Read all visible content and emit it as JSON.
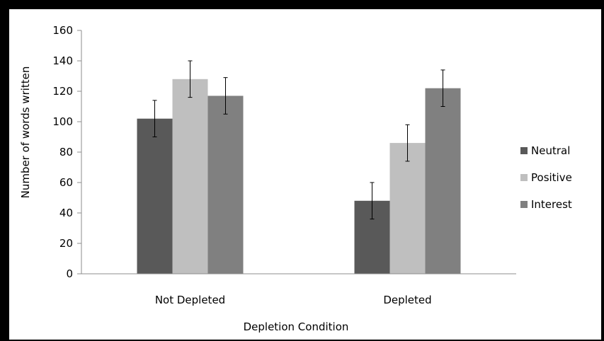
{
  "chart_data": {
    "type": "bar",
    "categories": [
      "Not Depleted",
      "Depleted"
    ],
    "series": [
      {
        "name": "Neutral",
        "values": [
          102,
          48
        ],
        "errors": [
          12,
          12
        ],
        "color": "#595959"
      },
      {
        "name": "Positive",
        "values": [
          128,
          86
        ],
        "errors": [
          12,
          12
        ],
        "color": "#bfbfbf"
      },
      {
        "name": "Interest",
        "values": [
          117,
          122
        ],
        "errors": [
          12,
          12
        ],
        "color": "#808080"
      }
    ],
    "xlabel": "Depletion Condition",
    "ylabel": "Number of words written",
    "ylim": [
      0,
      160
    ],
    "yticks": [
      "0",
      "20",
      "40",
      "60",
      "80",
      "100",
      "120",
      "140",
      "160"
    ],
    "grid": false,
    "legend_position": "right"
  }
}
